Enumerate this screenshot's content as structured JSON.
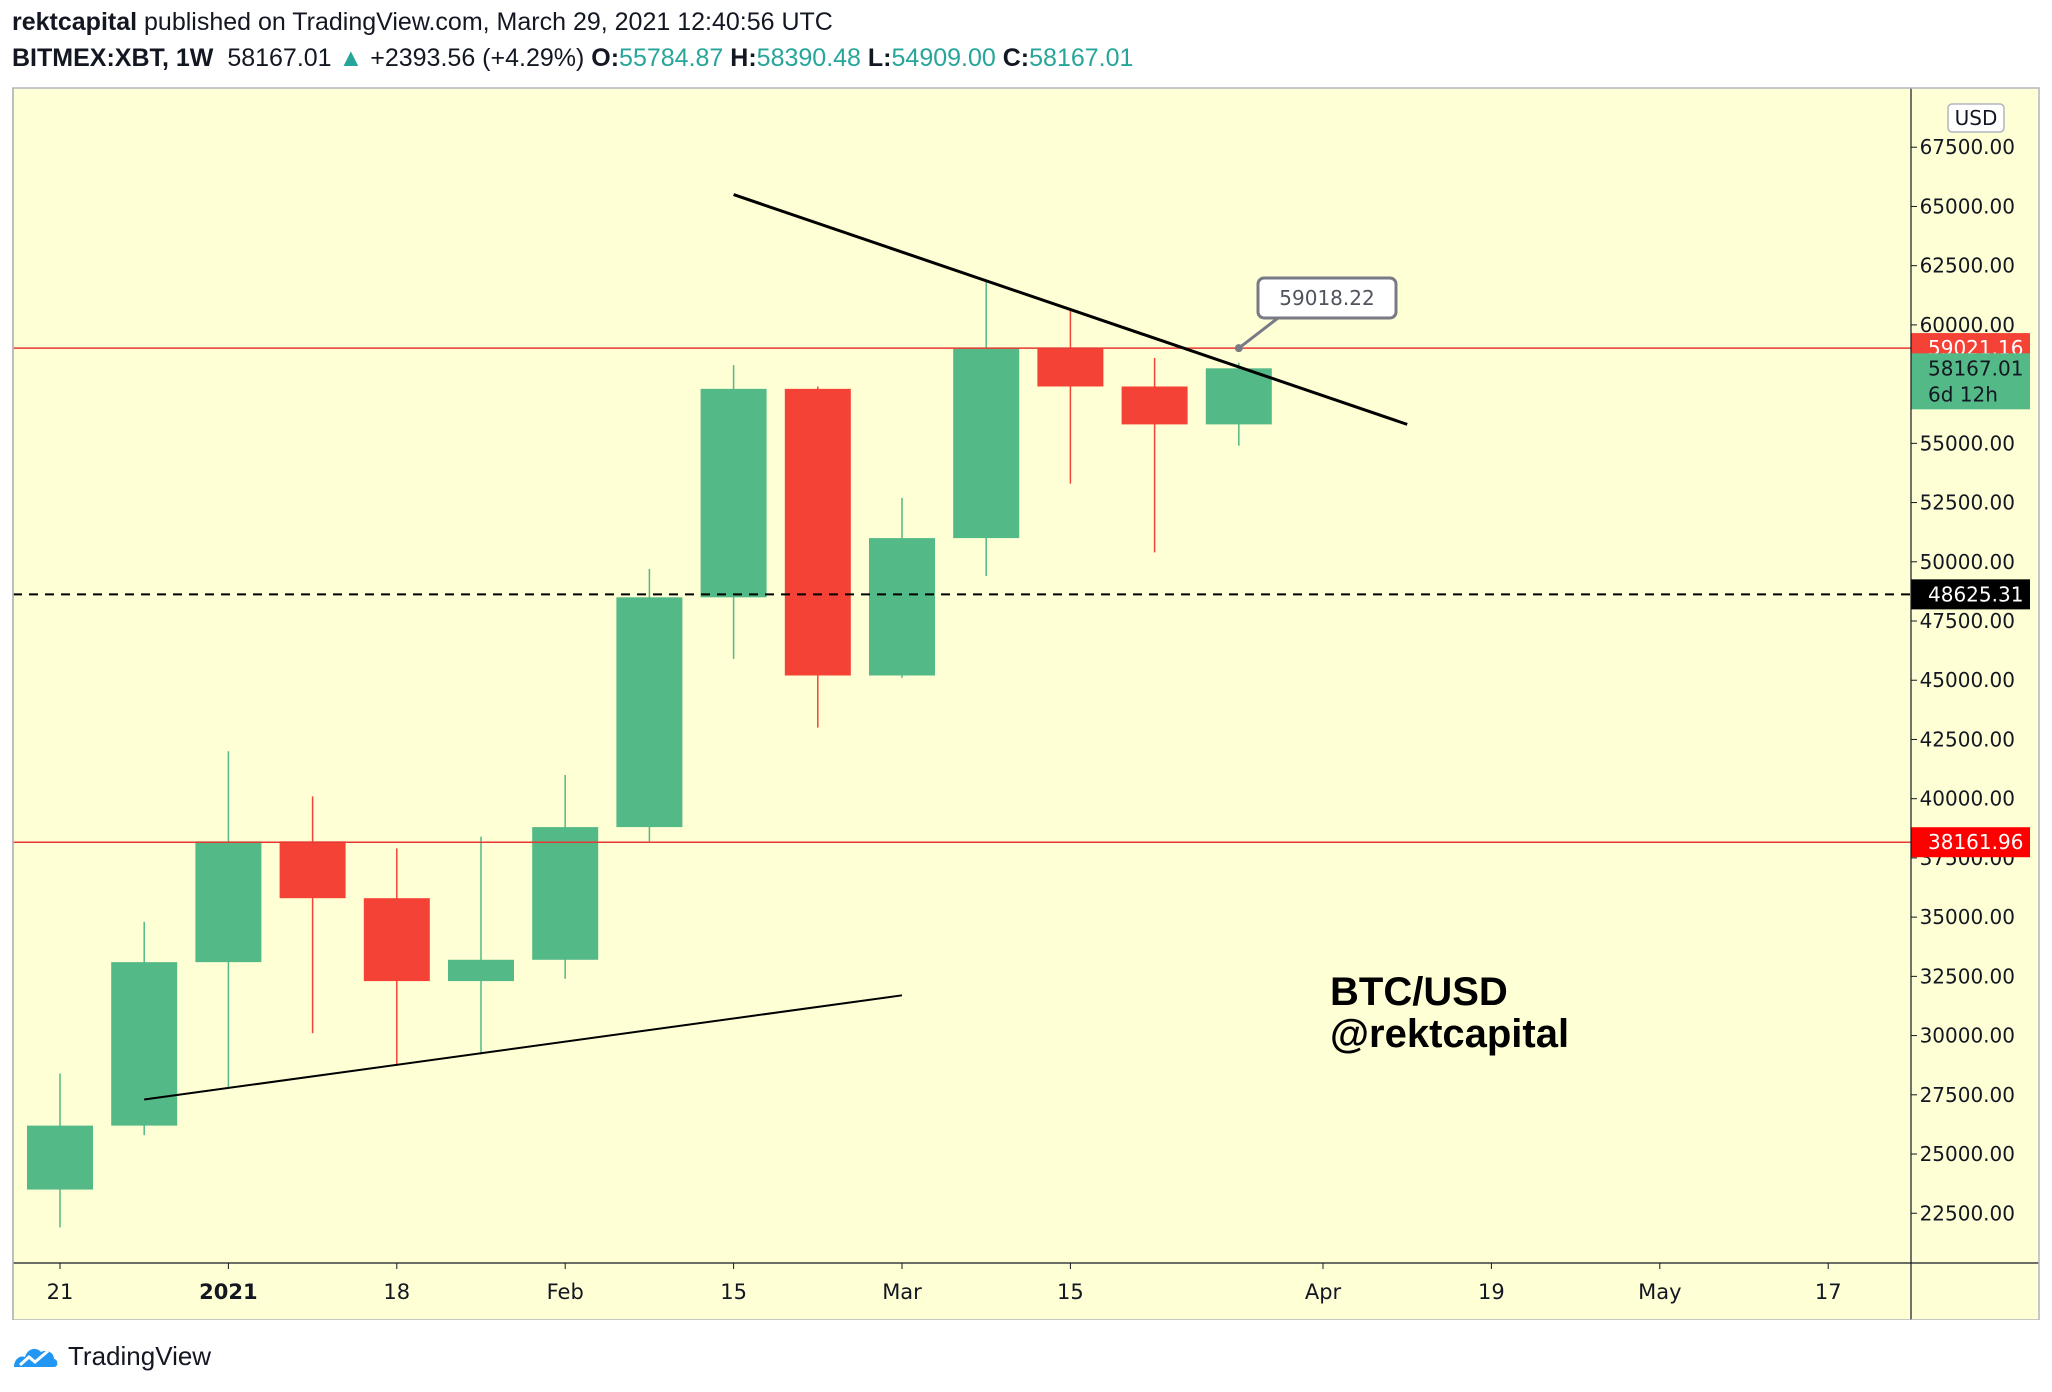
{
  "header": {
    "author": "rektcapital",
    "published_text": "published on TradingView.com, March 29, 2021 12:40:56 UTC",
    "symbol": "BITMEX:XBT, 1W",
    "last": "58167.01",
    "change": "+2393.56 (+4.29%)",
    "o_label": "O:",
    "o_value": "55784.87",
    "h_label": "H:",
    "h_value": "58390.48",
    "l_label": "L:",
    "l_value": "54909.00",
    "c_label": "C:",
    "c_value": "58167.01"
  },
  "footer": {
    "brand": "TradingView",
    "icon": "tradingview-logo-icon"
  },
  "colors": {
    "background": "#ffffd5",
    "up": "#53b987",
    "down": "#f44336",
    "line": "#000000",
    "support_line": "#e53935"
  },
  "chart_data": {
    "type": "candlestick",
    "currency": "USD",
    "ylim": [
      20400,
      70000
    ],
    "y_ticks": [
      22500,
      25000,
      27500,
      30000,
      32500,
      35000,
      37500,
      40000,
      42500,
      45000,
      47500,
      50000,
      52500,
      55000,
      57500,
      60000,
      62500,
      65000,
      67500
    ],
    "y_tick_labels": [
      "22500.00",
      "25000.00",
      "27500.00",
      "30000.00",
      "32500.00",
      "35000.00",
      "37500.00",
      "40000.00",
      "42500.00",
      "45000.00",
      "47500.00",
      "50000.00",
      "52500.00",
      "55000.00",
      "57500.00",
      "60000.00",
      "62500.00",
      "65000.00",
      "67500.00"
    ],
    "x_ticks": [
      {
        "label": "21",
        "index": 0,
        "bold": false
      },
      {
        "label": "2021",
        "index": 2,
        "bold": true
      },
      {
        "label": "18",
        "index": 4,
        "bold": false
      },
      {
        "label": "Feb",
        "index": 6,
        "bold": false
      },
      {
        "label": "15",
        "index": 8,
        "bold": false
      },
      {
        "label": "Mar",
        "index": 10,
        "bold": false
      },
      {
        "label": "15",
        "index": 12,
        "bold": false
      },
      {
        "label": "Apr",
        "index": 15,
        "bold": false
      },
      {
        "label": "19",
        "index": 17,
        "bold": false
      },
      {
        "label": "May",
        "index": 19,
        "bold": false
      },
      {
        "label": "17",
        "index": 21,
        "bold": false
      }
    ],
    "candles": [
      {
        "o": 23500,
        "h": 28400,
        "l": 21900,
        "c": 26200
      },
      {
        "o": 26200,
        "h": 34800,
        "l": 25800,
        "c": 33100
      },
      {
        "o": 33100,
        "h": 42000,
        "l": 27800,
        "c": 38200
      },
      {
        "o": 38200,
        "h": 40100,
        "l": 30100,
        "c": 35800
      },
      {
        "o": 35800,
        "h": 37900,
        "l": 28800,
        "c": 32300
      },
      {
        "o": 32300,
        "h": 38400,
        "l": 29200,
        "c": 33200
      },
      {
        "o": 33200,
        "h": 41000,
        "l": 32400,
        "c": 38800
      },
      {
        "o": 38800,
        "h": 49700,
        "l": 38200,
        "c": 48500
      },
      {
        "o": 48500,
        "h": 58300,
        "l": 45900,
        "c": 57300
      },
      {
        "o": 57300,
        "h": 57400,
        "l": 43000,
        "c": 45200
      },
      {
        "o": 45200,
        "h": 52700,
        "l": 45100,
        "c": 51000
      },
      {
        "o": 51000,
        "h": 61800,
        "l": 49400,
        "c": 59000
      },
      {
        "o": 59000,
        "h": 60600,
        "l": 53300,
        "c": 57400
      },
      {
        "o": 57400,
        "h": 58600,
        "l": 50400,
        "c": 55800
      },
      {
        "o": 55800,
        "h": 58400,
        "l": 54900,
        "c": 58167
      }
    ],
    "horizontal_lines": [
      {
        "value": 59021.16,
        "label": "59021.16",
        "style": "solid",
        "color": "#e53935",
        "tag_color": "#f44336"
      },
      {
        "value": 38161.96,
        "label": "38161.96",
        "style": "solid",
        "color": "#e53935",
        "tag_color": "#ff0000"
      },
      {
        "value": 48625.31,
        "label": "48625.31",
        "style": "dashed",
        "color": "#000000",
        "tag_color": "#000000"
      }
    ],
    "trendlines": [
      {
        "x1": 8.0,
        "y1": 65500,
        "x2": 16.0,
        "y2": 55800,
        "width": 3
      },
      {
        "x1": 1.0,
        "y1": 27300,
        "x2": 10.0,
        "y2": 31700,
        "width": 2
      }
    ],
    "price_callout": {
      "label": "59018.22",
      "index": 14.0,
      "value": 59018.22
    },
    "last_price": {
      "label": "58167.01",
      "countdown": "6d 12h",
      "value": 58167.01
    },
    "watermark_lines": [
      "BTC/USD",
      "@rektcapital"
    ]
  }
}
